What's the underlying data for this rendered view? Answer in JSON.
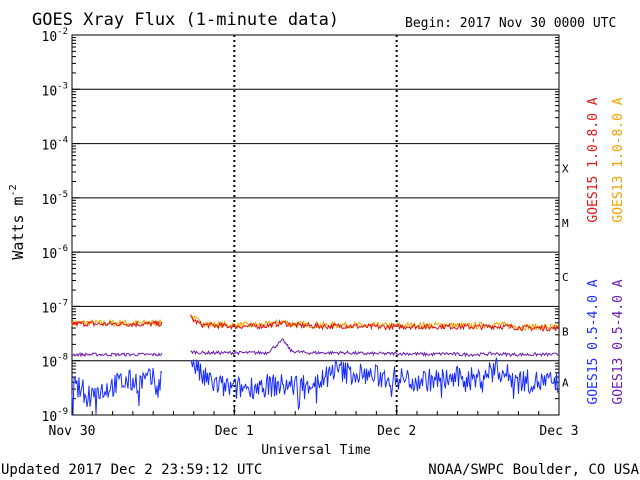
{
  "title": "GOES Xray Flux (1-minute data)",
  "begin_label": "Begin:  2017 Nov 30 0000 UTC",
  "updated": "Updated 2017 Dec  2 23:59:12 UTC",
  "credit": "NOAA/SWPC Boulder, CO USA",
  "colors": {
    "goes15_long": "#e01515",
    "goes13_long": "#f5a000",
    "goes15_short": "#1a2dff",
    "goes13_short": "#6a1bb0"
  },
  "chart_data": {
    "type": "line",
    "title": "GOES Xray Flux (1-minute data)",
    "xlabel": "Universal Time",
    "ylabel": "Watts m-2",
    "y_scale": "log",
    "ylim": [
      1e-09,
      0.01
    ],
    "xlim": [
      "2017-11-30 00:00",
      "2017-12-03 00:00"
    ],
    "x_ticks": [
      "Nov 30",
      "Dec 1",
      "Dec 2",
      "Dec 3"
    ],
    "y_ticks": [
      "1e-2",
      "1e-3",
      "1e-4",
      "1e-5",
      "1e-6",
      "1e-7",
      "1e-8",
      "1e-9"
    ],
    "y_tick_labels": [
      {
        "base": "10",
        "exp": "-2"
      },
      {
        "base": "10",
        "exp": "-3"
      },
      {
        "base": "10",
        "exp": "-4"
      },
      {
        "base": "10",
        "exp": "-5"
      },
      {
        "base": "10",
        "exp": "-6"
      },
      {
        "base": "10",
        "exp": "-7"
      },
      {
        "base": "10",
        "exp": "-8"
      },
      {
        "base": "10",
        "exp": "-9"
      }
    ],
    "flare_classes": [
      {
        "label": "X",
        "flux": 0.0001
      },
      {
        "label": "M",
        "flux": 1e-05
      },
      {
        "label": "C",
        "flux": 1e-06
      },
      {
        "label": "B",
        "flux": 1e-07
      },
      {
        "label": "A",
        "flux": 1e-08
      }
    ],
    "data_gap_days": [
      0.56,
      0.73
    ],
    "series": [
      {
        "name": "GOES15 1.0-8.0 A",
        "x_days": [
          0,
          0.1,
          0.2,
          0.3,
          0.4,
          0.5,
          0.56,
          0.73,
          0.75,
          0.8,
          0.9,
          1.0,
          1.1,
          1.2,
          1.3,
          1.35,
          1.45,
          1.55,
          1.6,
          1.7,
          1.8,
          1.9,
          2.0,
          2.1,
          2.2,
          2.3,
          2.4,
          2.5,
          2.6,
          2.7,
          2.8,
          2.9,
          3.0
        ],
        "values": [
          4.8e-08,
          4.8e-08,
          4.7e-08,
          4.8e-08,
          4.7e-08,
          4.8e-08,
          4.8e-08,
          6.5e-08,
          5.5e-08,
          4.6e-08,
          4.4e-08,
          4.3e-08,
          4.3e-08,
          4.4e-08,
          5e-08,
          4.6e-08,
          4.4e-08,
          4.3e-08,
          4.3e-08,
          4.4e-08,
          4.2e-08,
          4.2e-08,
          4.2e-08,
          4.3e-08,
          4.2e-08,
          4.3e-08,
          4.2e-08,
          4.2e-08,
          4.3e-08,
          4.2e-08,
          4e-08,
          4e-08,
          3.9e-08
        ]
      },
      {
        "name": "GOES13 1.0-8.0 A",
        "x_days": [
          0,
          0.1,
          0.2,
          0.3,
          0.4,
          0.5,
          0.56,
          0.73,
          0.75,
          0.8,
          0.9,
          1.0,
          1.1,
          1.2,
          1.3,
          1.35,
          1.45,
          1.55,
          1.6,
          1.7,
          1.8,
          1.9,
          2.0,
          2.1,
          2.2,
          2.3,
          2.4,
          2.5,
          2.6,
          2.7,
          2.8,
          2.9,
          3.0
        ],
        "values": [
          5e-08,
          5e-08,
          4.9e-08,
          5e-08,
          4.9e-08,
          5e-08,
          5e-08,
          7e-08,
          6e-08,
          4.9e-08,
          4.6e-08,
          4.5e-08,
          4.5e-08,
          4.6e-08,
          5.2e-08,
          4.8e-08,
          4.6e-08,
          4.5e-08,
          4.5e-08,
          4.6e-08,
          4.4e-08,
          4.4e-08,
          4.4e-08,
          4.5e-08,
          4.4e-08,
          4.6e-08,
          4.4e-08,
          4.4e-08,
          4.7e-08,
          4.4e-08,
          4.2e-08,
          4.2e-08,
          4.1e-08
        ]
      },
      {
        "name": "GOES15 0.5-4.0 A",
        "x_days": [
          0,
          0.1,
          0.2,
          0.3,
          0.4,
          0.5,
          0.56,
          0.73,
          0.75,
          0.8,
          0.9,
          1.0,
          1.1,
          1.2,
          1.3,
          1.35,
          1.45,
          1.55,
          1.6,
          1.7,
          1.8,
          1.9,
          2.0,
          2.1,
          2.2,
          2.3,
          2.4,
          2.5,
          2.6,
          2.7,
          2.8,
          2.9,
          3.0
        ],
        "values": [
          3.5e-09,
          2.5e-09,
          3e-09,
          4e-09,
          4.2e-09,
          4.5e-09,
          4.5e-09,
          1.2e-08,
          9e-09,
          5e-09,
          3.5e-09,
          3e-09,
          3.3e-09,
          3.5e-09,
          3.5e-09,
          3.5e-09,
          3.8e-09,
          4.5e-09,
          7e-09,
          6e-09,
          5.5e-09,
          5e-09,
          4.8e-09,
          4.5e-09,
          4.4e-09,
          4.5e-09,
          4.8e-09,
          4.5e-09,
          7.5e-09,
          5e-09,
          4.2e-09,
          4e-09,
          4e-09
        ]
      },
      {
        "name": "GOES13 0.5-4.0 A",
        "x_days": [
          0,
          0.1,
          0.2,
          0.3,
          0.4,
          0.5,
          0.56,
          0.73,
          0.75,
          0.8,
          0.9,
          1.0,
          1.1,
          1.2,
          1.3,
          1.35,
          1.45,
          1.55,
          1.6,
          1.7,
          1.8,
          1.9,
          2.0,
          2.1,
          2.2,
          2.3,
          2.4,
          2.5,
          2.6,
          2.7,
          2.8,
          2.9,
          3.0
        ],
        "values": [
          1.3e-08,
          1.3e-08,
          1.3e-08,
          1.3e-08,
          1.3e-08,
          1.3e-08,
          1.3e-08,
          1.45e-08,
          1.45e-08,
          1.4e-08,
          1.4e-08,
          1.4e-08,
          1.4e-08,
          1.4e-08,
          2.4e-08,
          1.5e-08,
          1.4e-08,
          1.4e-08,
          1.4e-08,
          1.4e-08,
          1.35e-08,
          1.35e-08,
          1.35e-08,
          1.35e-08,
          1.3e-08,
          1.35e-08,
          1.3e-08,
          1.3e-08,
          1.35e-08,
          1.3e-08,
          1.3e-08,
          1.3e-08,
          1.3e-08
        ]
      }
    ]
  }
}
